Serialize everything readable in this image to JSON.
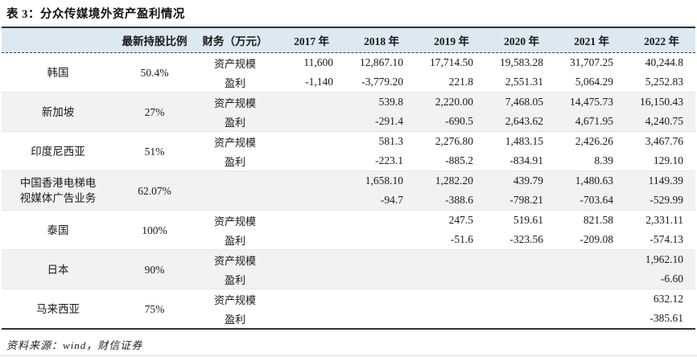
{
  "title": "表 3：分众传媒境外资产盈利情况",
  "source": "资料来源：wind，财信证券",
  "table": {
    "headers": [
      "",
      "最新持股比例",
      "财务（万元）",
      "2017 年",
      "2018 年",
      "2019 年",
      "2020 年",
      "2021 年",
      "2022 年"
    ],
    "rows": [
      {
        "region": "韩国",
        "holding": "50.4%",
        "metrics": [
          {
            "label": "资产规模",
            "values": [
              "11,600",
              "12,867.10",
              "17,714.50",
              "19,583.28",
              "31,707.25",
              "40,244.8"
            ]
          },
          {
            "label": "盈利",
            "values": [
              "-1,140",
              "-3,779.20",
              "221.8",
              "2,551.31",
              "5,064.29",
              "5,252.83"
            ]
          }
        ]
      },
      {
        "region": "新加坡",
        "holding": "27%",
        "metrics": [
          {
            "label": "资产规模",
            "values": [
              "",
              "539.8",
              "2,220.00",
              "7,468.05",
              "14,475.73",
              "16,150.43"
            ]
          },
          {
            "label": "盈利",
            "values": [
              "",
              "-291.4",
              "-690.5",
              "2,643.62",
              "4,671.95",
              "4,240.75"
            ]
          }
        ]
      },
      {
        "region": "印度尼西亚",
        "holding": "51%",
        "metrics": [
          {
            "label": "资产规模",
            "values": [
              "",
              "581.3",
              "2,276.80",
              "1,483.15",
              "2,426.26",
              "3,467.76"
            ]
          },
          {
            "label": "盈利",
            "values": [
              "",
              "-223.1",
              "-885.2",
              "-834.91",
              "8.39",
              "129.10"
            ]
          }
        ]
      },
      {
        "region": "中国香港电梯电\n视媒体广告业务",
        "holding": "62.07%",
        "metrics": [
          {
            "label": "",
            "values": [
              "",
              "1,658.10",
              "1,282.20",
              "439.79",
              "1,480.63",
              "1149.39"
            ]
          },
          {
            "label": "",
            "values": [
              "",
              "-94.7",
              "-388.6",
              "-798.21",
              "-703.64",
              "-529.99"
            ]
          }
        ]
      },
      {
        "region": "泰国",
        "holding": "100%",
        "metrics": [
          {
            "label": "资产规模",
            "values": [
              "",
              "",
              "247.5",
              "519.61",
              "821.58",
              "2,331.11"
            ]
          },
          {
            "label": "盈利",
            "values": [
              "",
              "",
              "-51.6",
              "-323.56",
              "-209.08",
              "-574.13"
            ]
          }
        ]
      },
      {
        "region": "日本",
        "holding": "90%",
        "metrics": [
          {
            "label": "资产规模",
            "values": [
              "",
              "",
              "",
              "",
              "",
              "1,962.10"
            ]
          },
          {
            "label": "盈利",
            "values": [
              "",
              "",
              "",
              "",
              "",
              "-6.60"
            ]
          }
        ]
      },
      {
        "region": "马来西亚",
        "holding": "75%",
        "metrics": [
          {
            "label": "资产规模",
            "values": [
              "",
              "",
              "",
              "",
              "",
              "632.12"
            ]
          },
          {
            "label": "盈利",
            "values": [
              "",
              "",
              "",
              "",
              "",
              "-385.61"
            ]
          }
        ]
      }
    ]
  },
  "colors": {
    "header_bg": "#dce9f2",
    "stripe_bg": "#f2f2f2",
    "rule_dark": "#2a333c"
  }
}
